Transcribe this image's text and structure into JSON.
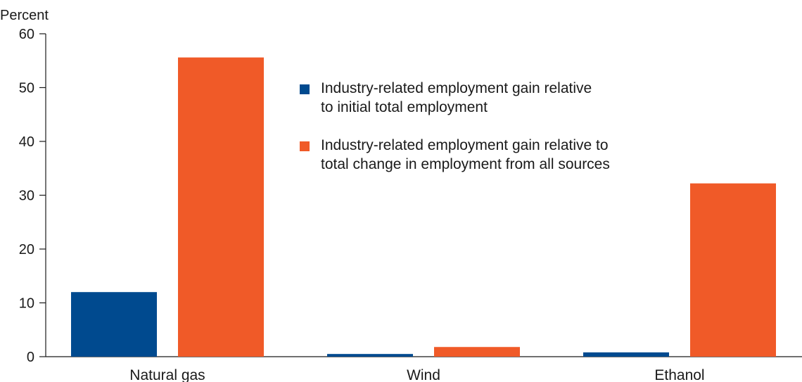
{
  "chart_data": {
    "type": "bar",
    "ylabel": "Percent",
    "xlabel": "",
    "ylim": [
      0,
      60
    ],
    "yticks": [
      0,
      10,
      20,
      30,
      40,
      50,
      60
    ],
    "categories": [
      "Natural gas",
      "Wind",
      "Ethanol"
    ],
    "series": [
      {
        "name": "Industry-related employment gain relative\nto initial total employment",
        "color": "#004a8f",
        "values": [
          12.0,
          0.5,
          0.8
        ]
      },
      {
        "name": "Industry-related employment gain relative to\ntotal change in employment from all sources",
        "color": "#f05a28",
        "values": [
          55.6,
          1.8,
          32.2
        ]
      }
    ],
    "legend_position": "top-center",
    "grid": false
  }
}
